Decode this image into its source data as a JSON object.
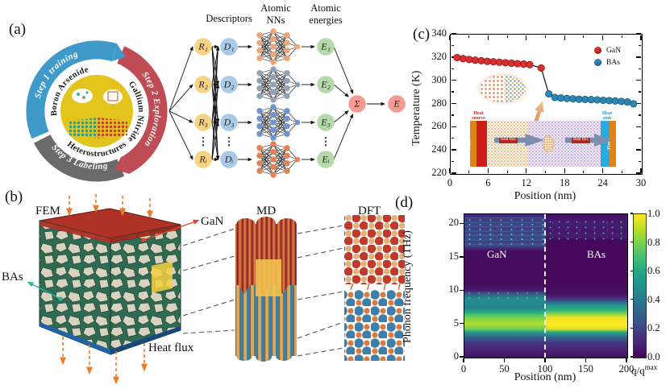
{
  "figure": {
    "panels": {
      "a": "(a)",
      "b": "(b)",
      "c": "(c)",
      "d": "(d)"
    },
    "panel_a": {
      "cycle": {
        "step1": "Step 1 training",
        "step2": "Step 2 Exploration",
        "step3": "Step 3 Labeling",
        "material_left": "Boron Arsenide",
        "material_right": "Gallium Nitride",
        "material_bottom": "Heterostructures",
        "colors": {
          "step1": "#3F9AC9",
          "step2": "#BF4B55",
          "step3": "#6A6A6A",
          "center": "#E2C41D"
        }
      },
      "network": {
        "header_descriptors": "Descriptors",
        "header_atomic": "Atomic",
        "header_nns": "NNs",
        "header_energies": "energies",
        "inputs": [
          "R₁",
          "R₂",
          "R₃",
          "Rᵢ"
        ],
        "descriptors": [
          "D₁",
          "D₂",
          "D₃",
          "Dᵢ"
        ],
        "energies": [
          "E₁",
          "E₂",
          "E₃",
          "Eᵢ"
        ],
        "sum": "Σ",
        "output": "E",
        "dots": "⋮",
        "nn_colors": [
          "#F0A478",
          "#90A4B8",
          "#6E95D0",
          "#E88152"
        ],
        "node_colors": {
          "input": "#F7D483",
          "descriptor": "#A9CBE8",
          "energy": "#B5D9A8",
          "output": "#F59B95"
        }
      }
    },
    "panel_b": {
      "fem": "FEM",
      "md": "MD",
      "dft": "DFT",
      "bas": "BAs",
      "gan": "GaN",
      "heat_flux": "Heat flux",
      "colors": {
        "bas_label": "#2BB89E",
        "gan_label": "#E0442C",
        "heat_flux_label": "#E87E2B",
        "grain_green": "#2F6B53",
        "grain_beige": "#D8D3BF",
        "top_face": "#B03226",
        "bottom_strip": "#2063A8"
      }
    },
    "panel_c": {
      "inset": {
        "heat_source": "Heat source",
        "heat_sink": "Heat sink",
        "fixed": "Fixed",
        "heat_flux": "Heat flux"
      }
    }
  },
  "chart_data": [
    {
      "type": "scatter",
      "xlabel": "Position (nm)",
      "ylabel": "Temperature (K)",
      "xlim": [
        0,
        30
      ],
      "ylim": [
        220,
        340
      ],
      "xticks": [
        0,
        6,
        12,
        18,
        24,
        30
      ],
      "xminor": [
        3,
        9,
        15,
        21,
        27
      ],
      "yticks": [
        220,
        240,
        260,
        280,
        300,
        320,
        340
      ],
      "yminor": [
        230,
        250,
        270,
        290,
        310,
        330
      ],
      "grid": false,
      "legend_position": "top-right",
      "line_color": "#111111",
      "series": [
        {
          "name": "GaN",
          "color": "#D92F2F",
          "edge": "#801010",
          "x": [
            1.0,
            1.95,
            2.9,
            3.85,
            4.8,
            5.75,
            6.7,
            7.65,
            8.6,
            9.55,
            10.5,
            11.45,
            12.4,
            14.2
          ],
          "y": [
            320.2,
            319.3,
            318.6,
            318.0,
            317.5,
            317.0,
            316.6,
            316.2,
            315.8,
            315.4,
            315.0,
            314.6,
            314.2,
            311.3
          ]
        },
        {
          "name": "BAs",
          "color": "#2E86B5",
          "edge": "#14506E",
          "x": [
            15.4,
            16.35,
            17.3,
            18.25,
            19.2,
            20.15,
            21.1,
            22.05,
            23.0,
            23.95,
            24.9,
            25.85,
            26.8,
            27.75,
            28.7
          ],
          "y": [
            289.0,
            285.9,
            285.4,
            285.0,
            284.7,
            284.4,
            284.2,
            284.0,
            283.8,
            283.5,
            283.2,
            282.9,
            282.5,
            282.0,
            280.4
          ]
        }
      ]
    },
    {
      "type": "heatmap",
      "xlabel": "Position (nm)",
      "ylabel": "Phonon frequency (THz)",
      "xlim": [
        0,
        200
      ],
      "ylim": [
        0,
        21.5
      ],
      "xticks": [
        0,
        50,
        100,
        150,
        200
      ],
      "yticks": [
        0,
        5,
        10,
        15,
        20
      ],
      "divider_x": 100,
      "regions": [
        {
          "label": "GaN",
          "x_range": [
            0,
            100
          ]
        },
        {
          "label": "BAs",
          "x_range": [
            100,
            200
          ]
        }
      ],
      "colorbar": {
        "label_base": "q/q",
        "label_sup": "max",
        "ticks": [
          "0.0",
          "0.2",
          "0.4",
          "0.6",
          "0.8",
          "1.0"
        ],
        "colormap": "viridis"
      },
      "profiles": {
        "GaN": [
          [
            0,
            0.04
          ],
          [
            1.2,
            0.1
          ],
          [
            2.2,
            0.16
          ],
          [
            3.0,
            0.3
          ],
          [
            3.8,
            0.55
          ],
          [
            4.3,
            0.78
          ],
          [
            5.0,
            0.88
          ],
          [
            5.8,
            0.82
          ],
          [
            6.4,
            0.72
          ],
          [
            7.0,
            0.55
          ],
          [
            7.6,
            0.42
          ],
          [
            8.3,
            0.48
          ],
          [
            9.0,
            0.45
          ],
          [
            9.6,
            0.25
          ],
          [
            10.2,
            0.06
          ],
          [
            11.0,
            0.03
          ],
          [
            16.0,
            0.03
          ],
          [
            16.8,
            0.22
          ],
          [
            17.5,
            0.18
          ],
          [
            18.3,
            0.24
          ],
          [
            19.2,
            0.18
          ],
          [
            20.0,
            0.22
          ],
          [
            20.8,
            0.15
          ],
          [
            21.5,
            0.1
          ]
        ],
        "BAs": [
          [
            0,
            0.04
          ],
          [
            1.2,
            0.1
          ],
          [
            2.2,
            0.16
          ],
          [
            3.0,
            0.32
          ],
          [
            3.8,
            0.6
          ],
          [
            4.3,
            0.95
          ],
          [
            5.0,
            1.0
          ],
          [
            6.0,
            0.98
          ],
          [
            6.6,
            0.8
          ],
          [
            7.2,
            0.62
          ],
          [
            7.9,
            0.5
          ],
          [
            8.4,
            0.3
          ],
          [
            8.9,
            0.12
          ],
          [
            9.6,
            0.04
          ],
          [
            11.0,
            0.02
          ],
          [
            17.6,
            0.02
          ],
          [
            18.2,
            0.08
          ],
          [
            19.0,
            0.06
          ],
          [
            20.0,
            0.08
          ],
          [
            21.0,
            0.06
          ],
          [
            21.5,
            0.04
          ]
        ]
      }
    }
  ]
}
